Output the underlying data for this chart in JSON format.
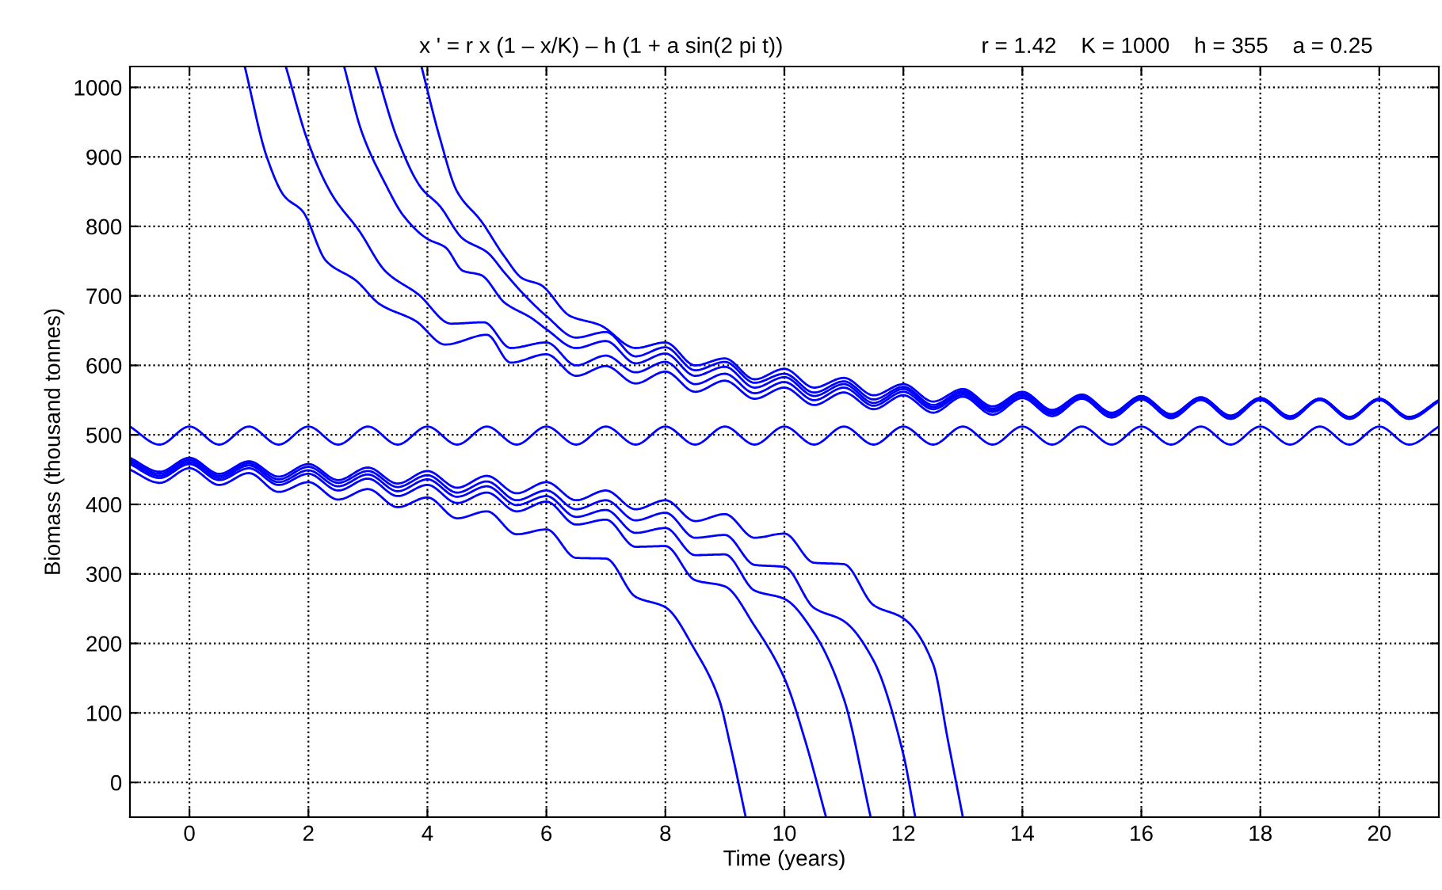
{
  "chart_data": {
    "type": "line",
    "title": "x ' = r x (1 – x/K) – h (1 + a sin(2 pi t))",
    "subtitle": "r = 1.42    K = 1000    h = 355    a = 0.25",
    "xlabel": "Time (years)",
    "ylabel": "Biomass (thousand tonnes)",
    "xlim": [
      -1,
      21
    ],
    "ylim": [
      -50,
      1030
    ],
    "xticks": [
      0,
      2,
      4,
      6,
      8,
      10,
      12,
      14,
      16,
      18,
      20
    ],
    "yticks": [
      0,
      100,
      200,
      300,
      400,
      500,
      600,
      700,
      800,
      900,
      1000
    ],
    "grid": true,
    "legend": false,
    "series": [
      {
        "color": "#0000ff",
        "x": [
          -1,
          -0.5,
          0,
          0.5,
          1,
          1.5,
          2,
          2.5,
          3,
          3.5,
          4,
          4.5,
          5,
          5.5,
          6,
          6.5,
          7,
          7.5,
          8,
          8.5,
          9,
          9.5,
          10,
          10.5,
          11,
          11.5,
          12,
          12.5,
          13,
          13.5,
          14,
          14.5,
          15,
          15.5,
          16,
          16.5,
          17,
          17.5,
          18,
          18.5,
          19,
          19.5,
          20,
          20.5,
          21
        ],
        "values": [
          512,
          486,
          512,
          486,
          512,
          486,
          512,
          486,
          512,
          486,
          512,
          486,
          512,
          486,
          512,
          486,
          512,
          486,
          512,
          486,
          512,
          486,
          512,
          486,
          512,
          486,
          512,
          486,
          512,
          486,
          512,
          486,
          512,
          486,
          512,
          486,
          512,
          486,
          512,
          486,
          512,
          486,
          512,
          486,
          512
        ]
      },
      {
        "color": "#0000ff",
        "x": [
          -1,
          -0.5,
          0,
          0.5,
          1,
          1.5,
          2,
          2.5,
          3,
          3.5,
          4,
          4.5,
          5,
          5.5,
          6,
          6.5,
          7,
          7.5,
          8,
          8.5,
          8.9,
          9.1,
          9.35
        ],
        "values": [
          450,
          431,
          452,
          428,
          445,
          418,
          432,
          407,
          422,
          396,
          410,
          380,
          390,
          357,
          364,
          323,
          322,
          267,
          252,
          190,
          120,
          50,
          -50
        ]
      },
      {
        "color": "#0000ff",
        "x": [
          -1,
          -0.5,
          0,
          0.5,
          1,
          1.5,
          2,
          2.5,
          3,
          3.5,
          4,
          4.5,
          5,
          5.5,
          6,
          6.5,
          7,
          7.5,
          8,
          8.5,
          9,
          9.5,
          10,
          10.35,
          10.7
        ],
        "values": [
          458,
          438,
          458,
          435,
          452,
          428,
          444,
          420,
          437,
          412,
          428,
          402,
          417,
          390,
          404,
          371,
          378,
          339,
          340,
          291,
          282,
          225,
          150,
          60,
          -50
        ]
      },
      {
        "color": "#0000ff",
        "x": [
          -1,
          -0.5,
          0,
          0.5,
          1,
          1.5,
          2,
          2.5,
          3,
          3.5,
          4,
          4.5,
          5,
          5.5,
          6,
          6.5,
          7,
          7.5,
          8,
          8.5,
          9,
          9.5,
          10,
          10.5,
          11,
          11.45
        ],
        "values": [
          461,
          441,
          461,
          438,
          456,
          432,
          449,
          426,
          443,
          419,
          436,
          411,
          426,
          399,
          412,
          382,
          392,
          359,
          366,
          327,
          328,
          276,
          264,
          215,
          120,
          -50
        ]
      },
      {
        "color": "#0000ff",
        "x": [
          -1,
          -0.5,
          0,
          0.5,
          1,
          1.5,
          2,
          2.5,
          3,
          3.5,
          4,
          4.5,
          5,
          5.5,
          6,
          6.5,
          7,
          7.5,
          8,
          8.5,
          9,
          9.5,
          10,
          10.5,
          11,
          11.5,
          12,
          12.2
        ],
        "values": [
          464,
          444,
          464,
          441,
          459,
          436,
          454,
          431,
          448,
          425,
          442,
          417,
          433,
          406,
          420,
          393,
          406,
          377,
          388,
          352,
          356,
          313,
          310,
          251,
          232,
          175,
          40,
          -50
        ]
      },
      {
        "color": "#0000ff",
        "x": [
          -1,
          -0.5,
          0,
          0.5,
          1,
          1.5,
          2,
          2.5,
          3,
          3.5,
          4,
          4.5,
          5,
          5.5,
          6,
          6.5,
          7,
          7.5,
          8,
          8.5,
          9,
          9.5,
          10,
          10.5,
          11,
          11.5,
          12,
          12.5,
          12.75,
          13
        ],
        "values": [
          467,
          447,
          467,
          444,
          462,
          440,
          458,
          435,
          453,
          430,
          448,
          424,
          441,
          416,
          432,
          406,
          420,
          393,
          406,
          376,
          386,
          352,
          358,
          316,
          314,
          255,
          236,
          170,
          60,
          -50
        ]
      },
      {
        "color": "#0000ff",
        "x": [
          0.93,
          1.3,
          1.6,
          1.9,
          2.3,
          2.8,
          3.2,
          3.8,
          4.3,
          5,
          5.4,
          6,
          6.5,
          7,
          7.5,
          8,
          8.5,
          9,
          9.5,
          10,
          10.5,
          11,
          11.5,
          12,
          12.5,
          13,
          13.5,
          14,
          14.5,
          15,
          15.5,
          16,
          16.5,
          17,
          17.5,
          18,
          18.5,
          19,
          19.5,
          20,
          20.5,
          21
        ],
        "values": [
          1030,
          900,
          843,
          822,
          750,
          722,
          688,
          664,
          630,
          644,
          604,
          616,
          585,
          599,
          574,
          591,
          562,
          578,
          552,
          568,
          543,
          561,
          537,
          557,
          532,
          555,
          529,
          553,
          527,
          552,
          525,
          551,
          524,
          550,
          523,
          550,
          523,
          550,
          523,
          550,
          523,
          548
        ]
      },
      {
        "color": "#0000ff",
        "x": [
          1.62,
          2,
          2.4,
          2.85,
          3.3,
          3.85,
          4.4,
          4.95,
          5.4,
          6,
          6.5,
          7,
          7.5,
          8,
          8.5,
          9,
          9.5,
          10,
          10.5,
          11,
          11.5,
          12,
          12.5,
          13,
          13.5,
          14,
          14.5,
          15,
          15.5,
          16,
          16.5,
          17,
          17.5,
          18,
          18.5,
          19,
          19.5,
          20,
          20.5,
          21
        ],
        "values": [
          1030,
          920,
          845,
          794,
          735,
          702,
          660,
          662,
          625,
          633,
          600,
          614,
          590,
          605,
          573,
          588,
          560,
          576,
          550,
          568,
          542,
          562,
          537,
          558,
          533,
          556,
          530,
          554,
          528,
          553,
          526,
          552,
          525,
          551,
          524,
          551,
          524,
          551,
          524,
          549
        ]
      },
      {
        "color": "#0000ff",
        "x": [
          2.6,
          2.9,
          3.3,
          3.6,
          4,
          4.3,
          4.6,
          4.9,
          5.3,
          5.75,
          6,
          6.5,
          7,
          7.5,
          8,
          8.5,
          9,
          9.5,
          10,
          10.5,
          11,
          11.5,
          12,
          12.5,
          13,
          13.5,
          14,
          14.5,
          15,
          15.5,
          16,
          16.5,
          17,
          17.5,
          18,
          18.5,
          19,
          19.5,
          20,
          20.5,
          21
        ],
        "values": [
          1030,
          935,
          860,
          815,
          782,
          770,
          736,
          730,
          690,
          668,
          652,
          625,
          635,
          603,
          617,
          585,
          598,
          568,
          583,
          556,
          573,
          546,
          566,
          540,
          561,
          535,
          558,
          532,
          556,
          529,
          554,
          527,
          553,
          526,
          552,
          525,
          552,
          525,
          551,
          525,
          549
        ]
      },
      {
        "color": "#0000ff",
        "x": [
          3.12,
          3.5,
          3.9,
          4.2,
          4.6,
          5,
          5.3,
          5.6,
          6,
          6.5,
          7,
          7.5,
          8,
          8.5,
          9,
          9.5,
          10,
          10.5,
          11,
          11.5,
          12,
          12.5,
          13,
          13.5,
          14,
          14.5,
          15,
          15.5,
          16,
          16.5,
          17,
          17.5,
          18,
          18.5,
          19,
          19.5,
          20,
          20.5,
          21
        ],
        "values": [
          1030,
          925,
          855,
          830,
          782,
          763,
          733,
          704,
          671,
          640,
          648,
          613,
          626,
          593,
          605,
          575,
          588,
          561,
          577,
          551,
          569,
          543,
          563,
          538,
          559,
          534,
          557,
          531,
          555,
          528,
          554,
          527,
          553,
          526,
          552,
          526,
          552,
          525,
          550
        ]
      },
      {
        "color": "#0000ff",
        "x": [
          3.9,
          4.2,
          4.5,
          4.9,
          5.3,
          5.6,
          5.9,
          6.4,
          6.9,
          7.5,
          8,
          8.5,
          9,
          9.5,
          10,
          10.5,
          11,
          11.5,
          12,
          12.5,
          13,
          13.5,
          14,
          14.5,
          15,
          15.5,
          16,
          16.5,
          17,
          17.5,
          18,
          18.5,
          19,
          19.5,
          20,
          20.5,
          21
        ],
        "values": [
          1030,
          930,
          850,
          808,
          756,
          725,
          716,
          671,
          658,
          625,
          633,
          600,
          610,
          580,
          595,
          568,
          582,
          557,
          573,
          548,
          566,
          541,
          562,
          536,
          558,
          532,
          556,
          530,
          554,
          528,
          553,
          527,
          552,
          526,
          552,
          526,
          550
        ]
      }
    ]
  }
}
